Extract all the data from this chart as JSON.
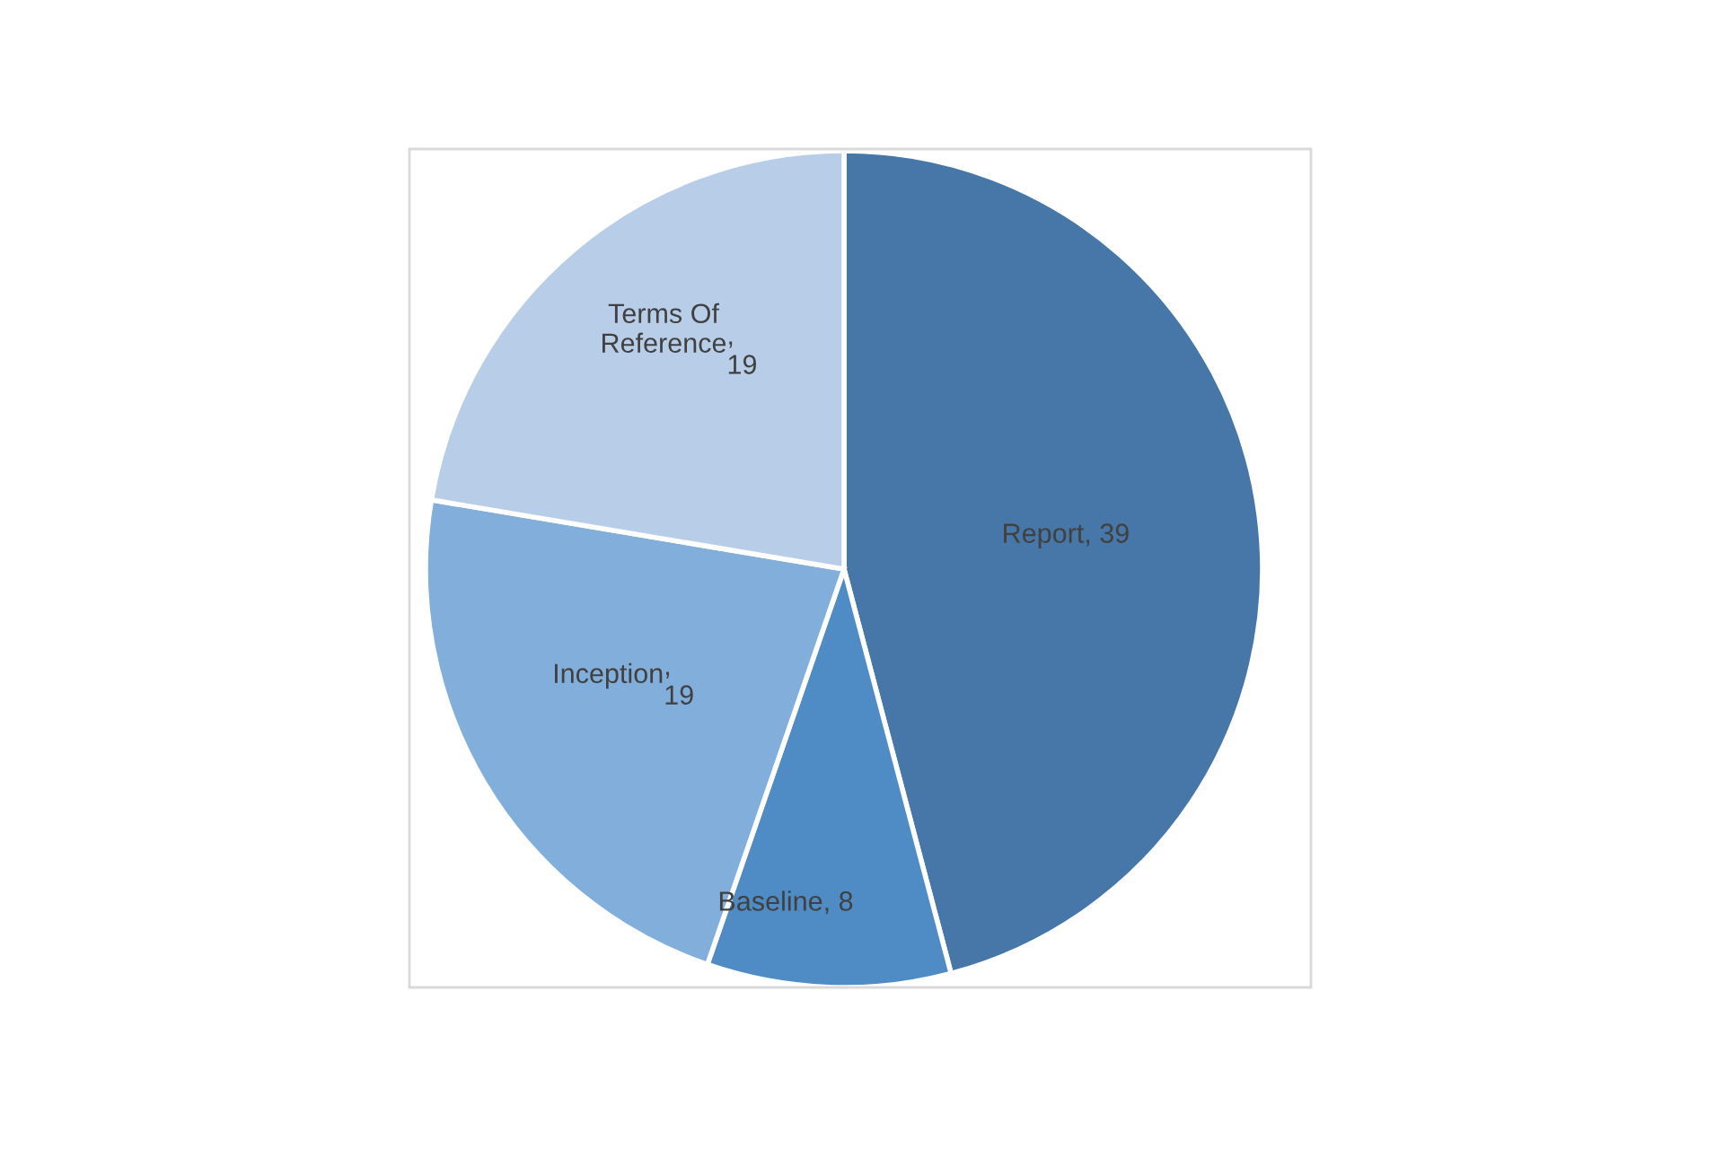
{
  "chart_data": {
    "type": "pie",
    "categories": [
      "Report",
      "Baseline",
      "Inception",
      "Terms Of Reference"
    ],
    "values": [
      39,
      8,
      19,
      19
    ],
    "value_labels": [
      ", 39",
      ", 8",
      ",\n19",
      ",\n19"
    ],
    "colors": [
      "#4677a8",
      "#4f8cc6",
      "#82aedb",
      "#b8cde8"
    ],
    "legend": false
  }
}
